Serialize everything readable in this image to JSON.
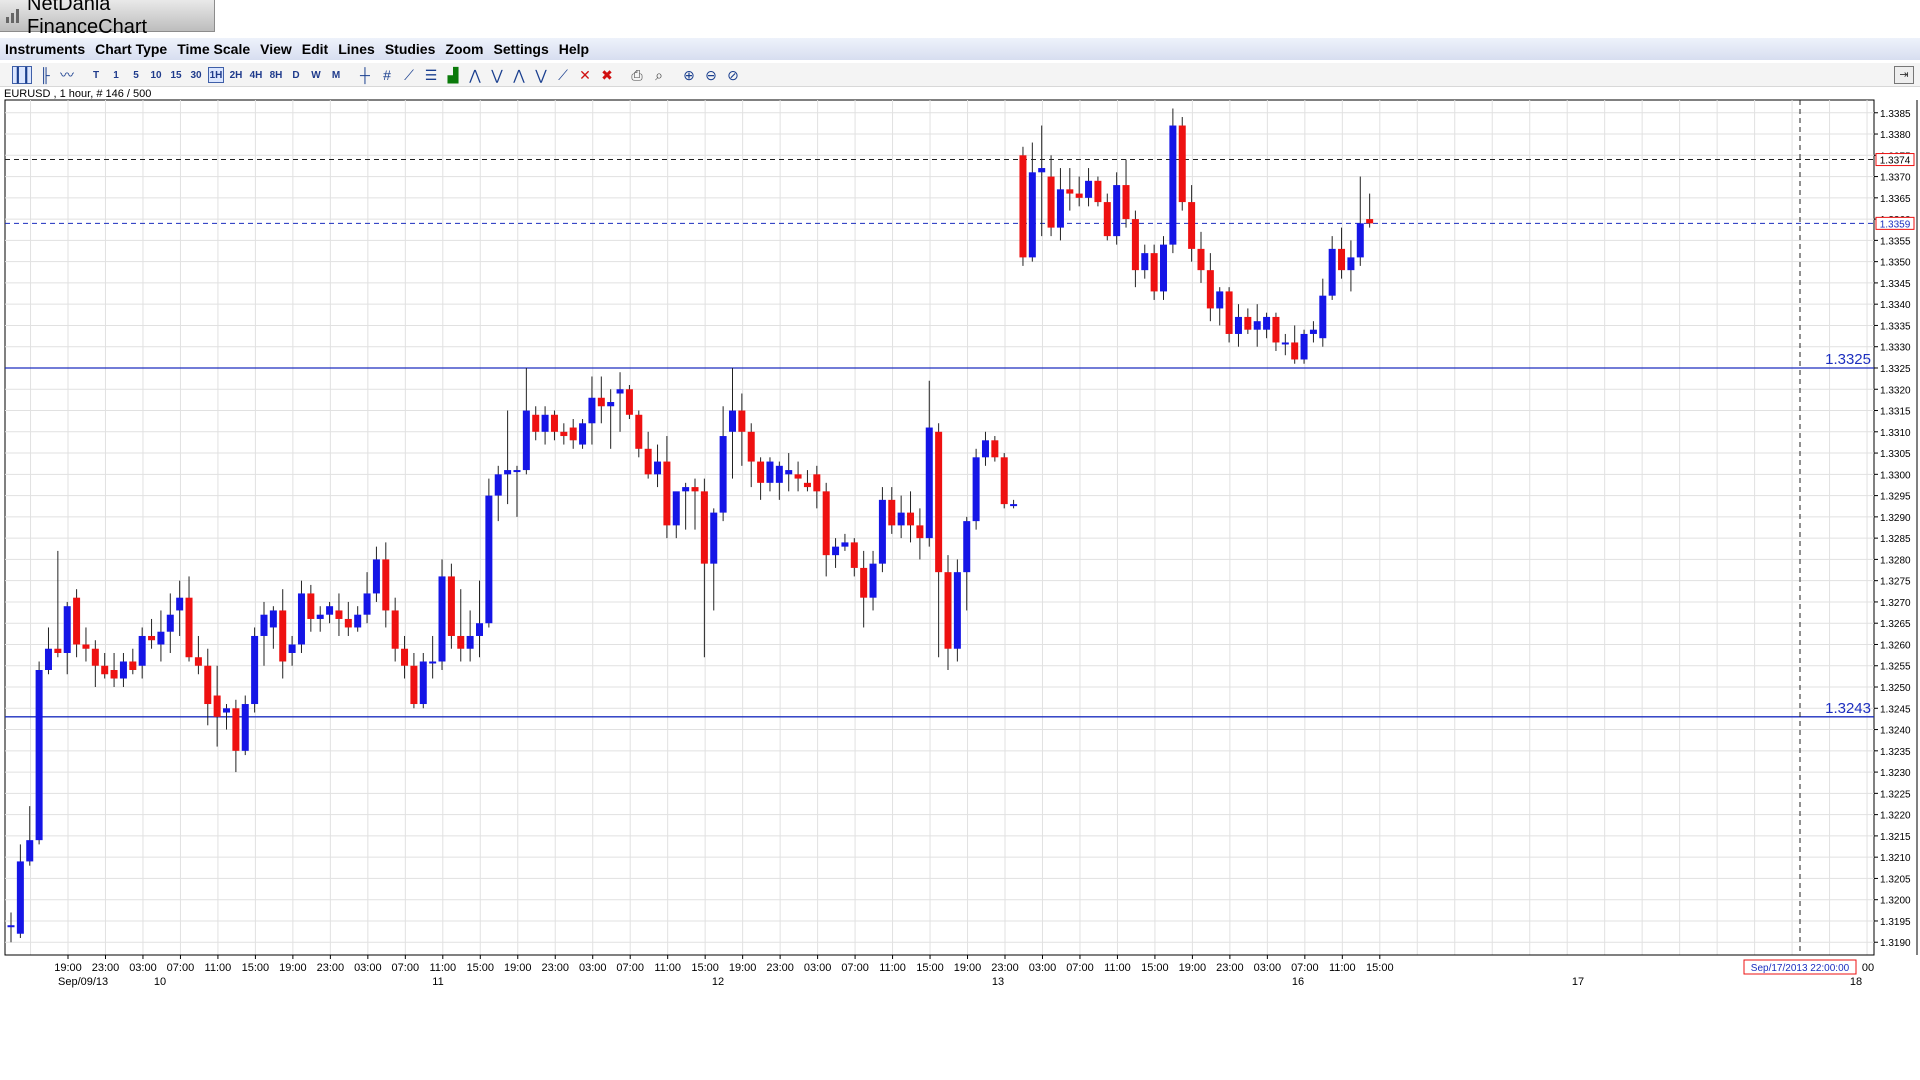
{
  "app": {
    "title": "NetDania FinanceChart"
  },
  "menu": [
    "Instruments",
    "Chart Type",
    "Time Scale",
    "View",
    "Edit",
    "Lines",
    "Studies",
    "Zoom",
    "Settings",
    "Help"
  ],
  "toolbar": {
    "timeframes": [
      "T",
      "1",
      "5",
      "10",
      "15",
      "30",
      "1H",
      "2H",
      "4H",
      "8H",
      "D",
      "W",
      "M"
    ],
    "active_timeframe": "1H",
    "icons": [
      "candlestick-icon",
      "bar-chart-icon",
      "line-chart-icon",
      "crosshair-icon",
      "grid-icon",
      "trend-line-icon",
      "fibonacci-icon",
      "delete-line-icon",
      "delete-all-icon",
      "print-icon",
      "print-preview-icon",
      "zoom-in-icon",
      "zoom-out-icon",
      "zoom-reset-icon",
      "dock-icon"
    ]
  },
  "symbol_info": "EURUSD , 1 hour, # 146 / 500",
  "colors": {
    "up": "#1515e6",
    "down": "#ee1111",
    "grid": "#e1e1e1",
    "line": "#1d2fbf"
  },
  "chart_data": {
    "type": "candlestick",
    "symbol": "EURUSD",
    "interval": "1 hour",
    "ylim": [
      1.3187,
      1.3388
    ],
    "y_ticks": [
      1.319,
      1.3195,
      1.32,
      1.3205,
      1.321,
      1.3215,
      1.322,
      1.3225,
      1.323,
      1.3235,
      1.324,
      1.3245,
      1.325,
      1.3255,
      1.326,
      1.3265,
      1.327,
      1.3275,
      1.328,
      1.3285,
      1.329,
      1.3295,
      1.33,
      1.3305,
      1.331,
      1.3315,
      1.332,
      1.3325,
      1.333,
      1.3335,
      1.334,
      1.3345,
      1.335,
      1.3355,
      1.336,
      1.3365,
      1.337,
      1.3375,
      1.338,
      1.3385
    ],
    "x_time_labels": [
      "19:00",
      "23:00",
      "03:00",
      "07:00",
      "11:00",
      "15:00",
      "19:00",
      "23:00",
      "03:00",
      "07:00",
      "11:00",
      "15:00",
      "19:00",
      "23:00",
      "03:00",
      "07:00",
      "11:00",
      "15:00",
      "19:00",
      "23:00",
      "03:00",
      "07:00",
      "11:00",
      "15:00",
      "19:00",
      "23:00",
      "03:00",
      "07:00",
      "11:00",
      "15:00",
      "19:00",
      "23:00",
      "03:00",
      "07:00",
      "11:00",
      "15:00"
    ],
    "x_date_labels": [
      "Sep/09/13",
      "10",
      "11",
      "12",
      "13",
      "16",
      "17",
      "18"
    ],
    "last_x_label": "00",
    "horizontal_lines": [
      {
        "label": "1.3325",
        "value": 1.3325
      },
      {
        "label": "1.3243",
        "value": 1.3243
      }
    ],
    "dashed_lines": [
      {
        "label": "1.3374",
        "value": 1.3374
      },
      {
        "label": "1.3359",
        "value": 1.3359
      }
    ],
    "cursor_time": "Sep/17/2013 22:00:00",
    "candles": [
      {
        "o": 1.3194,
        "h": 1.3197,
        "l": 1.319,
        "c": 1.3194
      },
      {
        "o": 1.3192,
        "h": 1.3213,
        "l": 1.3191,
        "c": 1.3209
      },
      {
        "o": 1.3209,
        "h": 1.3222,
        "l": 1.3208,
        "c": 1.3214
      },
      {
        "o": 1.3214,
        "h": 1.3256,
        "l": 1.3213,
        "c": 1.3254
      },
      {
        "o": 1.3254,
        "h": 1.3264,
        "l": 1.3253,
        "c": 1.3259
      },
      {
        "o": 1.3259,
        "h": 1.3282,
        "l": 1.3257,
        "c": 1.3258
      },
      {
        "o": 1.3258,
        "h": 1.327,
        "l": 1.3253,
        "c": 1.3269
      },
      {
        "o": 1.3271,
        "h": 1.3273,
        "l": 1.3257,
        "c": 1.326
      },
      {
        "o": 1.326,
        "h": 1.3264,
        "l": 1.3256,
        "c": 1.3259
      },
      {
        "o": 1.3259,
        "h": 1.3261,
        "l": 1.325,
        "c": 1.3255
      },
      {
        "o": 1.3255,
        "h": 1.3258,
        "l": 1.3252,
        "c": 1.3253
      },
      {
        "o": 1.3254,
        "h": 1.3258,
        "l": 1.325,
        "c": 1.3252
      },
      {
        "o": 1.3252,
        "h": 1.3258,
        "l": 1.325,
        "c": 1.3256
      },
      {
        "o": 1.3256,
        "h": 1.3259,
        "l": 1.3253,
        "c": 1.3254
      },
      {
        "o": 1.3255,
        "h": 1.3264,
        "l": 1.3252,
        "c": 1.3262
      },
      {
        "o": 1.3262,
        "h": 1.3266,
        "l": 1.3259,
        "c": 1.3261
      },
      {
        "o": 1.326,
        "h": 1.3268,
        "l": 1.3256,
        "c": 1.3263
      },
      {
        "o": 1.3263,
        "h": 1.3272,
        "l": 1.3258,
        "c": 1.3267
      },
      {
        "o": 1.3268,
        "h": 1.3275,
        "l": 1.3262,
        "c": 1.3271
      },
      {
        "o": 1.3271,
        "h": 1.3276,
        "l": 1.3256,
        "c": 1.3257
      },
      {
        "o": 1.3257,
        "h": 1.3262,
        "l": 1.3253,
        "c": 1.3255
      },
      {
        "o": 1.3255,
        "h": 1.3259,
        "l": 1.3241,
        "c": 1.3246
      },
      {
        "o": 1.3248,
        "h": 1.3255,
        "l": 1.3236,
        "c": 1.3243
      },
      {
        "o": 1.3244,
        "h": 1.3246,
        "l": 1.324,
        "c": 1.3245
      },
      {
        "o": 1.3245,
        "h": 1.3247,
        "l": 1.323,
        "c": 1.3235
      },
      {
        "o": 1.3235,
        "h": 1.3248,
        "l": 1.3234,
        "c": 1.3246
      },
      {
        "o": 1.3246,
        "h": 1.3264,
        "l": 1.3244,
        "c": 1.3262
      },
      {
        "o": 1.3262,
        "h": 1.327,
        "l": 1.3255,
        "c": 1.3267
      },
      {
        "o": 1.3264,
        "h": 1.3269,
        "l": 1.3259,
        "c": 1.3268
      },
      {
        "o": 1.3268,
        "h": 1.3273,
        "l": 1.3252,
        "c": 1.3256
      },
      {
        "o": 1.3258,
        "h": 1.3262,
        "l": 1.3255,
        "c": 1.326
      },
      {
        "o": 1.326,
        "h": 1.3275,
        "l": 1.3258,
        "c": 1.3272
      },
      {
        "o": 1.3272,
        "h": 1.3274,
        "l": 1.3263,
        "c": 1.3266
      },
      {
        "o": 1.3266,
        "h": 1.3269,
        "l": 1.3263,
        "c": 1.3267
      },
      {
        "o": 1.3267,
        "h": 1.327,
        "l": 1.3265,
        "c": 1.3269
      },
      {
        "o": 1.3268,
        "h": 1.3272,
        "l": 1.3262,
        "c": 1.3266
      },
      {
        "o": 1.3266,
        "h": 1.327,
        "l": 1.3262,
        "c": 1.3264
      },
      {
        "o": 1.3264,
        "h": 1.3269,
        "l": 1.3263,
        "c": 1.3267
      },
      {
        "o": 1.3267,
        "h": 1.3277,
        "l": 1.3265,
        "c": 1.3272
      },
      {
        "o": 1.3272,
        "h": 1.3283,
        "l": 1.327,
        "c": 1.328
      },
      {
        "o": 1.328,
        "h": 1.3284,
        "l": 1.3264,
        "c": 1.3268
      },
      {
        "o": 1.3268,
        "h": 1.3271,
        "l": 1.3256,
        "c": 1.3259
      },
      {
        "o": 1.3259,
        "h": 1.3262,
        "l": 1.3252,
        "c": 1.3255
      },
      {
        "o": 1.3255,
        "h": 1.3258,
        "l": 1.3245,
        "c": 1.3246
      },
      {
        "o": 1.3246,
        "h": 1.3258,
        "l": 1.3245,
        "c": 1.3256
      },
      {
        "o": 1.3256,
        "h": 1.3262,
        "l": 1.3252,
        "c": 1.3256
      },
      {
        "o": 1.3256,
        "h": 1.328,
        "l": 1.3254,
        "c": 1.3276
      },
      {
        "o": 1.3276,
        "h": 1.3279,
        "l": 1.3259,
        "c": 1.3262
      },
      {
        "o": 1.3262,
        "h": 1.3273,
        "l": 1.3256,
        "c": 1.3259
      },
      {
        "o": 1.3259,
        "h": 1.3268,
        "l": 1.3256,
        "c": 1.3262
      },
      {
        "o": 1.3262,
        "h": 1.3275,
        "l": 1.3257,
        "c": 1.3265
      },
      {
        "o": 1.3265,
        "h": 1.3299,
        "l": 1.3264,
        "c": 1.3295
      },
      {
        "o": 1.3295,
        "h": 1.3302,
        "l": 1.3289,
        "c": 1.33
      },
      {
        "o": 1.33,
        "h": 1.3315,
        "l": 1.3293,
        "c": 1.3301
      },
      {
        "o": 1.3301,
        "h": 1.3302,
        "l": 1.329,
        "c": 1.3301
      },
      {
        "o": 1.3301,
        "h": 1.3325,
        "l": 1.33,
        "c": 1.3315
      },
      {
        "o": 1.3314,
        "h": 1.3316,
        "l": 1.3308,
        "c": 1.331
      },
      {
        "o": 1.331,
        "h": 1.3316,
        "l": 1.3307,
        "c": 1.3314
      },
      {
        "o": 1.3314,
        "h": 1.3315,
        "l": 1.3308,
        "c": 1.331
      },
      {
        "o": 1.331,
        "h": 1.3312,
        "l": 1.3307,
        "c": 1.3309
      },
      {
        "o": 1.3311,
        "h": 1.3313,
        "l": 1.3306,
        "c": 1.3308
      },
      {
        "o": 1.3307,
        "h": 1.3313,
        "l": 1.3306,
        "c": 1.3312
      },
      {
        "o": 1.3312,
        "h": 1.3323,
        "l": 1.3307,
        "c": 1.3318
      },
      {
        "o": 1.3318,
        "h": 1.3323,
        "l": 1.3312,
        "c": 1.3316
      },
      {
        "o": 1.3316,
        "h": 1.332,
        "l": 1.3306,
        "c": 1.3317
      },
      {
        "o": 1.3319,
        "h": 1.3324,
        "l": 1.331,
        "c": 1.332
      },
      {
        "o": 1.332,
        "h": 1.3321,
        "l": 1.3313,
        "c": 1.3314
      },
      {
        "o": 1.3314,
        "h": 1.3315,
        "l": 1.3304,
        "c": 1.3306
      },
      {
        "o": 1.3306,
        "h": 1.331,
        "l": 1.3299,
        "c": 1.33
      },
      {
        "o": 1.33,
        "h": 1.3307,
        "l": 1.3297,
        "c": 1.3303
      },
      {
        "o": 1.3303,
        "h": 1.3309,
        "l": 1.3285,
        "c": 1.3288
      },
      {
        "o": 1.3288,
        "h": 1.3294,
        "l": 1.3285,
        "c": 1.3296
      },
      {
        "o": 1.3296,
        "h": 1.3298,
        "l": 1.3287,
        "c": 1.3297
      },
      {
        "o": 1.3297,
        "h": 1.3299,
        "l": 1.3287,
        "c": 1.3296
      },
      {
        "o": 1.3296,
        "h": 1.3299,
        "l": 1.3257,
        "c": 1.3279
      },
      {
        "o": 1.3279,
        "h": 1.3292,
        "l": 1.3268,
        "c": 1.3291
      },
      {
        "o": 1.3291,
        "h": 1.3316,
        "l": 1.3289,
        "c": 1.3309
      },
      {
        "o": 1.331,
        "h": 1.3325,
        "l": 1.3299,
        "c": 1.3315
      },
      {
        "o": 1.3315,
        "h": 1.3319,
        "l": 1.3302,
        "c": 1.331
      },
      {
        "o": 1.331,
        "h": 1.3312,
        "l": 1.3297,
        "c": 1.3303
      },
      {
        "o": 1.3303,
        "h": 1.3304,
        "l": 1.3294,
        "c": 1.3298
      },
      {
        "o": 1.3298,
        "h": 1.3304,
        "l": 1.3296,
        "c": 1.3303
      },
      {
        "o": 1.3298,
        "h": 1.3303,
        "l": 1.3294,
        "c": 1.3302
      },
      {
        "o": 1.33,
        "h": 1.3305,
        "l": 1.3296,
        "c": 1.3301
      },
      {
        "o": 1.33,
        "h": 1.3303,
        "l": 1.3296,
        "c": 1.3299
      },
      {
        "o": 1.3298,
        "h": 1.3301,
        "l": 1.3296,
        "c": 1.3297
      },
      {
        "o": 1.33,
        "h": 1.3302,
        "l": 1.3292,
        "c": 1.3296
      },
      {
        "o": 1.3296,
        "h": 1.3298,
        "l": 1.3276,
        "c": 1.3281
      },
      {
        "o": 1.3281,
        "h": 1.3285,
        "l": 1.3278,
        "c": 1.3283
      },
      {
        "o": 1.3283,
        "h": 1.3286,
        "l": 1.3282,
        "c": 1.3284
      },
      {
        "o": 1.3284,
        "h": 1.3285,
        "l": 1.3276,
        "c": 1.3278
      },
      {
        "o": 1.3278,
        "h": 1.3282,
        "l": 1.3264,
        "c": 1.3271
      },
      {
        "o": 1.3271,
        "h": 1.3282,
        "l": 1.3268,
        "c": 1.3279
      },
      {
        "o": 1.3279,
        "h": 1.3297,
        "l": 1.3277,
        "c": 1.3294
      },
      {
        "o": 1.3294,
        "h": 1.3297,
        "l": 1.3286,
        "c": 1.3288
      },
      {
        "o": 1.3288,
        "h": 1.3295,
        "l": 1.3285,
        "c": 1.3291
      },
      {
        "o": 1.3291,
        "h": 1.3296,
        "l": 1.3284,
        "c": 1.3288
      },
      {
        "o": 1.3288,
        "h": 1.3292,
        "l": 1.328,
        "c": 1.3285
      },
      {
        "o": 1.3285,
        "h": 1.3322,
        "l": 1.3283,
        "c": 1.3311
      },
      {
        "o": 1.331,
        "h": 1.3312,
        "l": 1.3257,
        "c": 1.3277
      },
      {
        "o": 1.3277,
        "h": 1.3281,
        "l": 1.3254,
        "c": 1.3259
      },
      {
        "o": 1.3259,
        "h": 1.328,
        "l": 1.3256,
        "c": 1.3277
      },
      {
        "o": 1.3277,
        "h": 1.329,
        "l": 1.3268,
        "c": 1.3289
      },
      {
        "o": 1.3289,
        "h": 1.3306,
        "l": 1.3287,
        "c": 1.3304
      },
      {
        "o": 1.3304,
        "h": 1.331,
        "l": 1.3302,
        "c": 1.3308
      },
      {
        "o": 1.3308,
        "h": 1.3309,
        "l": 1.3303,
        "c": 1.3304
      },
      {
        "o": 1.3304,
        "h": 1.3305,
        "l": 1.3292,
        "c": 1.3293
      },
      {
        "o": 1.3293,
        "h": 1.3294,
        "l": 1.3292,
        "c": 1.3293
      },
      {
        "o": 1.3375,
        "h": 1.3377,
        "l": 1.3349,
        "c": 1.3351
      },
      {
        "o": 1.3351,
        "h": 1.3378,
        "l": 1.335,
        "c": 1.3371
      },
      {
        "o": 1.3371,
        "h": 1.3382,
        "l": 1.3356,
        "c": 1.3372
      },
      {
        "o": 1.337,
        "h": 1.3375,
        "l": 1.3356,
        "c": 1.3358
      },
      {
        "o": 1.3358,
        "h": 1.3372,
        "l": 1.3355,
        "c": 1.3367
      },
      {
        "o": 1.3367,
        "h": 1.3372,
        "l": 1.3362,
        "c": 1.3366
      },
      {
        "o": 1.3366,
        "h": 1.337,
        "l": 1.3363,
        "c": 1.3365
      },
      {
        "o": 1.3365,
        "h": 1.3372,
        "l": 1.3363,
        "c": 1.3369
      },
      {
        "o": 1.3369,
        "h": 1.337,
        "l": 1.3363,
        "c": 1.3364
      },
      {
        "o": 1.3364,
        "h": 1.3366,
        "l": 1.3355,
        "c": 1.3356
      },
      {
        "o": 1.3356,
        "h": 1.3371,
        "l": 1.3354,
        "c": 1.3368
      },
      {
        "o": 1.3368,
        "h": 1.3374,
        "l": 1.3358,
        "c": 1.336
      },
      {
        "o": 1.336,
        "h": 1.3362,
        "l": 1.3344,
        "c": 1.3348
      },
      {
        "o": 1.3348,
        "h": 1.3354,
        "l": 1.3346,
        "c": 1.3352
      },
      {
        "o": 1.3352,
        "h": 1.3354,
        "l": 1.3341,
        "c": 1.3343
      },
      {
        "o": 1.3343,
        "h": 1.3356,
        "l": 1.3341,
        "c": 1.3354
      },
      {
        "o": 1.3354,
        "h": 1.3386,
        "l": 1.3352,
        "c": 1.3382
      },
      {
        "o": 1.3382,
        "h": 1.3384,
        "l": 1.3362,
        "c": 1.3364
      },
      {
        "o": 1.3364,
        "h": 1.3368,
        "l": 1.335,
        "c": 1.3353
      },
      {
        "o": 1.3353,
        "h": 1.3357,
        "l": 1.3345,
        "c": 1.3348
      },
      {
        "o": 1.3348,
        "h": 1.3352,
        "l": 1.3336,
        "c": 1.3339
      },
      {
        "o": 1.3339,
        "h": 1.3344,
        "l": 1.3335,
        "c": 1.3343
      },
      {
        "o": 1.3343,
        "h": 1.3344,
        "l": 1.3331,
        "c": 1.3333
      },
      {
        "o": 1.3333,
        "h": 1.334,
        "l": 1.333,
        "c": 1.3337
      },
      {
        "o": 1.3337,
        "h": 1.3339,
        "l": 1.3333,
        "c": 1.3334
      },
      {
        "o": 1.3334,
        "h": 1.334,
        "l": 1.333,
        "c": 1.3336
      },
      {
        "o": 1.3334,
        "h": 1.3338,
        "l": 1.3332,
        "c": 1.3337
      },
      {
        "o": 1.3337,
        "h": 1.3338,
        "l": 1.3329,
        "c": 1.3331
      },
      {
        "o": 1.3331,
        "h": 1.3333,
        "l": 1.3328,
        "c": 1.3331
      },
      {
        "o": 1.3331,
        "h": 1.3335,
        "l": 1.3326,
        "c": 1.3327
      },
      {
        "o": 1.3327,
        "h": 1.3334,
        "l": 1.3326,
        "c": 1.3333
      },
      {
        "o": 1.3333,
        "h": 1.3336,
        "l": 1.3331,
        "c": 1.3334
      },
      {
        "o": 1.3332,
        "h": 1.3346,
        "l": 1.333,
        "c": 1.3342
      },
      {
        "o": 1.3342,
        "h": 1.3356,
        "l": 1.3341,
        "c": 1.3353
      },
      {
        "o": 1.3353,
        "h": 1.3358,
        "l": 1.3346,
        "c": 1.3348
      },
      {
        "o": 1.3348,
        "h": 1.3355,
        "l": 1.3343,
        "c": 1.3351
      },
      {
        "o": 1.3351,
        "h": 1.337,
        "l": 1.3349,
        "c": 1.3359
      },
      {
        "o": 1.336,
        "h": 1.3366,
        "l": 1.3358,
        "c": 1.3359
      }
    ]
  }
}
